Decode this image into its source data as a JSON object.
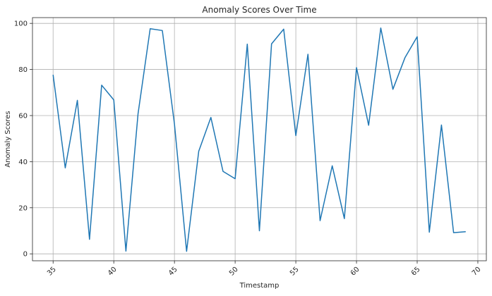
{
  "chart_data": {
    "type": "line",
    "title": "Anomaly Scores Over Time",
    "xlabel": "Timestamp",
    "ylabel": "Anomaly Scores",
    "xlim": [
      33.3,
      70.7
    ],
    "ylim": [
      -3.0,
      102.5
    ],
    "xticks": [
      35,
      40,
      45,
      50,
      55,
      60,
      65,
      70
    ],
    "yticks": [
      0,
      20,
      40,
      60,
      80,
      100
    ],
    "grid": true,
    "line_color": "#1f77b4",
    "series": [
      {
        "x": [
          35,
          36,
          37,
          38,
          39,
          40,
          41,
          42,
          43,
          44,
          45,
          46,
          47,
          48,
          49,
          50,
          51,
          52,
          53,
          54,
          55,
          56,
          57,
          58,
          59,
          60,
          61,
          62,
          63,
          64,
          65,
          66,
          67,
          68,
          69
        ],
        "y": [
          77.7,
          37.3,
          66.6,
          6.3,
          73.2,
          66.8,
          1.2,
          60.8,
          97.7,
          96.9,
          56.3,
          1.1,
          44.5,
          59.2,
          35.8,
          32.6,
          91.0,
          10.0,
          91.1,
          97.5,
          51.3,
          86.6,
          14.4,
          38.2,
          15.3,
          80.8,
          55.8,
          98.0,
          71.4,
          85.2,
          94.2,
          9.4,
          55.9,
          9.2,
          9.6
        ]
      }
    ]
  }
}
